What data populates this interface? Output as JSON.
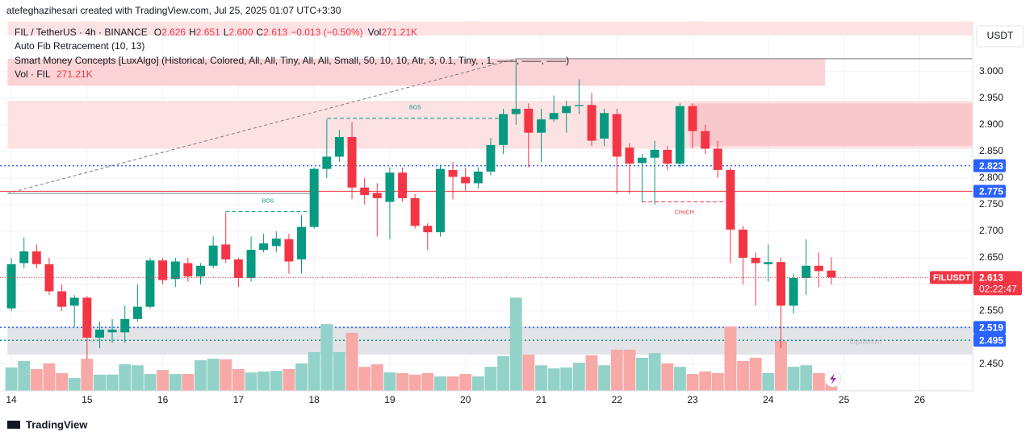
{
  "header": {
    "credit": "atefeghazihesari created with TradingView.com, Jul 25, 2025 01:07 UTC+3:30",
    "symbol": "FIL / TetherUS · 4h · BINANCE",
    "ohlc": [
      {
        "key": "O",
        "value": "2.626"
      },
      {
        "key": "H",
        "value": "2.651"
      },
      {
        "key": "L",
        "value": "2.600"
      },
      {
        "key": "C",
        "value": "2.613"
      }
    ],
    "change": "−0.013 (−0.50%)",
    "vol_key": "Vol",
    "vol_value": "271.21K",
    "indicators": [
      "Auto Fib Retracement (10, 13)",
      "Smart Money Concepts [LuxAlgo] (Historical, Colored, All, All, Tiny, All, All, Small, 50, 10, 10, Atr, 3, 0.1, Tiny, , 1, ——, ——, ——)"
    ],
    "vol_indicator": "Vol · FIL",
    "vol_indicator_value": "271.21K",
    "currency": "USDT",
    "footer": "TradingView"
  },
  "chart_data": {
    "type": "candlestick",
    "up_color": "#089981",
    "down_color": "#f23645",
    "up_volume_color": "#92d2c8",
    "down_volume_color": "#f7a9a7",
    "x": [
      14,
      14.167,
      14.333,
      14.5,
      14.667,
      14.833,
      15,
      15.167,
      15.333,
      15.5,
      15.667,
      15.833,
      16,
      16.167,
      16.333,
      16.5,
      16.667,
      16.833,
      17,
      17.167,
      17.333,
      17.5,
      17.667,
      17.833,
      18,
      18.167,
      18.333,
      18.5,
      18.667,
      18.833,
      19,
      19.167,
      19.333,
      19.5,
      19.667,
      19.833,
      20,
      20.167,
      20.333,
      20.5,
      20.667,
      20.833,
      21,
      21.167,
      21.333,
      21.5,
      21.667,
      21.833,
      22,
      22.167,
      22.333,
      22.5,
      22.667,
      22.833,
      23,
      23.167,
      23.333,
      23.5,
      23.667,
      23.833,
      24,
      24.167,
      24.333,
      24.5,
      24.667,
      24.833
    ],
    "open": [
      2.555,
      2.64,
      2.662,
      2.638,
      2.587,
      2.56,
      2.575,
      2.5,
      2.51,
      2.51,
      2.535,
      2.558,
      2.645,
      2.61,
      2.64,
      2.615,
      2.635,
      2.675,
      2.647,
      2.612,
      2.665,
      2.672,
      2.685,
      2.647,
      2.708,
      2.817,
      2.84,
      2.877,
      2.782,
      2.772,
      2.755,
      2.81,
      2.762,
      2.71,
      2.698,
      2.815,
      2.802,
      2.79,
      2.812,
      2.862,
      2.92,
      2.93,
      2.885,
      2.91,
      2.922,
      2.935,
      2.937,
      2.874,
      2.92,
      2.857,
      2.828,
      2.838,
      2.853,
      2.827,
      2.935,
      2.888,
      2.855,
      2.815,
      2.703,
      2.65,
      2.638,
      2.642,
      2.56,
      2.612,
      2.635,
      2.626
    ],
    "high": [
      2.65,
      2.688,
      2.675,
      2.65,
      2.6,
      2.58,
      2.578,
      2.53,
      2.535,
      2.56,
      2.6,
      2.65,
      2.65,
      2.65,
      2.65,
      2.64,
      2.69,
      2.735,
      2.65,
      2.69,
      2.695,
      2.7,
      2.695,
      2.73,
      2.82,
      2.91,
      2.89,
      2.905,
      2.8,
      2.79,
      2.82,
      2.82,
      2.77,
      2.715,
      2.825,
      2.83,
      2.82,
      2.82,
      2.875,
      2.93,
      3.025,
      2.94,
      2.93,
      2.955,
      2.945,
      2.985,
      2.96,
      2.93,
      2.93,
      2.865,
      2.845,
      2.87,
      2.86,
      2.94,
      2.94,
      2.9,
      2.87,
      2.82,
      2.71,
      2.66,
      2.675,
      2.65,
      2.62,
      2.685,
      2.66,
      2.651
    ],
    "low": [
      2.55,
      2.63,
      2.63,
      2.58,
      2.55,
      2.52,
      2.46,
      2.48,
      2.49,
      2.49,
      2.53,
      2.555,
      2.6,
      2.595,
      2.605,
      2.6,
      2.63,
      2.64,
      2.595,
      2.605,
      2.66,
      2.66,
      2.62,
      2.62,
      2.705,
      2.8,
      2.83,
      2.76,
      2.75,
      2.69,
      2.685,
      2.755,
      2.705,
      2.665,
      2.69,
      2.76,
      2.775,
      2.78,
      2.805,
      2.845,
      2.9,
      2.82,
      2.83,
      2.905,
      2.885,
      2.92,
      2.86,
      2.86,
      2.77,
      2.77,
      2.755,
      2.75,
      2.815,
      2.82,
      2.855,
      2.845,
      2.8,
      2.64,
      2.6,
      2.56,
      2.605,
      2.48,
      2.545,
      2.58,
      2.595,
      2.6
    ],
    "close": [
      2.638,
      2.662,
      2.638,
      2.587,
      2.558,
      2.575,
      2.5,
      2.515,
      2.515,
      2.535,
      2.558,
      2.645,
      2.608,
      2.643,
      2.615,
      2.635,
      2.673,
      2.647,
      2.612,
      2.665,
      2.677,
      2.686,
      2.643,
      2.708,
      2.817,
      2.84,
      2.877,
      2.782,
      2.768,
      2.762,
      2.81,
      2.762,
      2.71,
      2.698,
      2.817,
      2.802,
      2.79,
      2.812,
      2.862,
      2.92,
      2.93,
      2.885,
      2.91,
      2.922,
      2.935,
      2.937,
      2.87,
      2.922,
      2.84,
      2.827,
      2.838,
      2.853,
      2.827,
      2.935,
      2.888,
      2.855,
      2.815,
      2.703,
      2.65,
      2.64,
      2.642,
      2.56,
      2.612,
      2.635,
      2.625,
      2.613
    ],
    "volume": [
      375,
      480,
      350,
      440,
      285,
      205,
      515,
      260,
      260,
      425,
      410,
      270,
      335,
      270,
      270,
      490,
      515,
      505,
      350,
      295,
      310,
      320,
      350,
      440,
      620,
      1070,
      620,
      930,
      385,
      425,
      295,
      285,
      260,
      285,
      230,
      230,
      270,
      230,
      385,
      555,
      1495,
      580,
      410,
      360,
      375,
      450,
      570,
      410,
      660,
      660,
      530,
      605,
      440,
      385,
      270,
      310,
      285,
      1030,
      480,
      530,
      285,
      800,
      385,
      410,
      285,
      271.21
    ],
    "vlim": [
      0,
      5930
    ],
    "xlim": [
      13.85,
      26.7
    ],
    "xticks": [
      14,
      15,
      16,
      17,
      18,
      19,
      20,
      21,
      22,
      23,
      24,
      25,
      26
    ],
    "ylim": [
      2.4,
      3.095
    ],
    "yticks": [
      {
        "value": 2.45,
        "label": "2.450"
      },
      {
        "value": 2.5,
        "label": "2.500"
      },
      {
        "value": 2.55,
        "label": "2.550"
      },
      {
        "value": 2.6,
        "label": "2.600"
      },
      {
        "value": 2.65,
        "label": "2.650"
      },
      {
        "value": 2.7,
        "label": "2.700"
      },
      {
        "value": 2.75,
        "label": "2.750"
      },
      {
        "value": 2.8,
        "label": "2.800"
      },
      {
        "value": 2.85,
        "label": "2.850"
      },
      {
        "value": 2.9,
        "label": "2.900"
      },
      {
        "value": 2.95,
        "label": "2.950"
      },
      {
        "value": 3.0,
        "label": "3.000"
      }
    ],
    "grid": true,
    "zones": [
      {
        "price": [
          3.094,
          3.068
        ],
        "x": [
          13.95,
          26.7
        ],
        "color": "#fde2e4"
      },
      {
        "price": [
          3.024,
          2.973
        ],
        "x": [
          13.95,
          24.75
        ],
        "color": "#fbd3d6"
      },
      {
        "price": [
          2.945,
          2.855
        ],
        "x": [
          13.95,
          26.7
        ],
        "color": "#fde2e4"
      },
      {
        "price": [
          2.94,
          2.86
        ],
        "x": [
          22.96,
          26.7
        ],
        "color": "#f9c8cc"
      },
      {
        "price": [
          2.521,
          2.468
        ],
        "x": [
          13.95,
          26.7
        ],
        "color": "#e3e4e8",
        "label": "Equilibrium"
      }
    ],
    "levels": [
      {
        "price": 2.823,
        "color": "#2962ff",
        "style": "dotted"
      },
      {
        "price": 2.775,
        "color": "#f23645",
        "style": "solid"
      },
      {
        "price": 2.519,
        "color": "#2962ff",
        "style": "dotted"
      },
      {
        "price": 2.495,
        "color": "#089981",
        "style": "dotted"
      }
    ],
    "level_tag_color": "#2962ff",
    "structures": [
      {
        "label": "BOS",
        "price": 2.912,
        "x": [
          18.17,
          20.5
        ],
        "color": "#089981",
        "side": "above"
      },
      {
        "label": "BOS",
        "price": 2.737,
        "x": [
          16.83,
          17.95
        ],
        "color": "#089981",
        "side": "above"
      },
      {
        "label": "CHoCH",
        "price": 2.755,
        "x": [
          22.33,
          23.45
        ],
        "color": "#f23645",
        "side": "below"
      }
    ],
    "fib": {
      "from": [
        13.95,
        2.771
      ],
      "to": [
        20.67,
        3.024
      ],
      "from_end": 17.95,
      "to_end": 26.7
    },
    "last_tag": {
      "name": "FILUSDT",
      "countdown": "02:22:47"
    }
  }
}
